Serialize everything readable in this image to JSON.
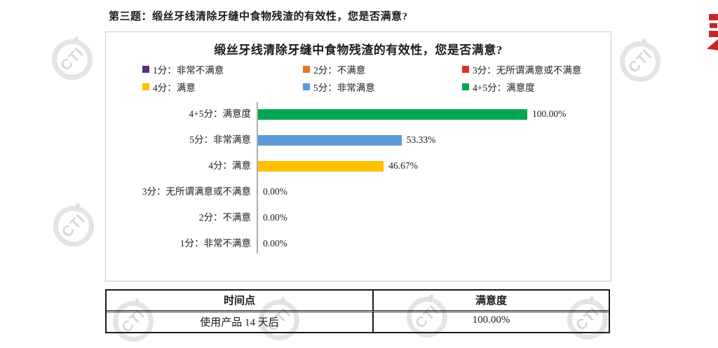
{
  "page": {
    "heading": "第三题：缎丝牙线清除牙缝中食物残渣的有效性，您是否满意?"
  },
  "watermark": {
    "text": "CTI"
  },
  "chart_data": {
    "type": "bar",
    "orientation": "horizontal",
    "title": "缎丝牙线清除牙缝中食物残渣的有效性，您是否满意?",
    "categories": [
      "4+5分：满意度",
      "5分：非常满意",
      "4分：满意",
      "3分：无所谓满意或不满意",
      "2分：不满意",
      "1分：非常不满意"
    ],
    "values": [
      100,
      53.33,
      46.67,
      0,
      0,
      0
    ],
    "value_labels": [
      "100.00%",
      "53.33%",
      "46.67%",
      "0.00%",
      "0.00%",
      "0.00%"
    ],
    "bar_colors": [
      "#00A651",
      "#5B9BD5",
      "#FFC000",
      "",
      "",
      ""
    ],
    "xlim": [
      0,
      100
    ],
    "grid": false,
    "legend_position": "top",
    "legend": [
      {
        "label": "1分：非常不满意",
        "color": "#5B2C86"
      },
      {
        "label": "2分：不满意",
        "color": "#E87722"
      },
      {
        "label": "3分：无所谓满意或不满意",
        "color": "#E0301E"
      },
      {
        "label": "4分：满意",
        "color": "#FFC000"
      },
      {
        "label": "5分：非常满意",
        "color": "#5B9BD5"
      },
      {
        "label": "4+5分：满意度",
        "color": "#00A651"
      }
    ]
  },
  "table": {
    "headers": [
      "时间点",
      "满意度"
    ],
    "rows": [
      [
        "使用产品 14 天后",
        "100.00%"
      ]
    ]
  }
}
